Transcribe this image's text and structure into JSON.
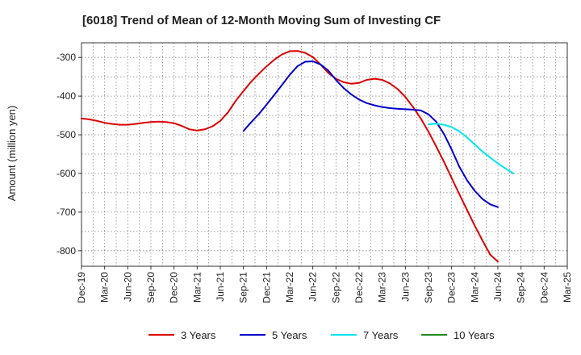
{
  "chart_data": {
    "type": "line",
    "title": "[6018]  Trend of Mean of 12-Month Moving Sum of Investing CF",
    "xlabel": "",
    "ylabel": "Amount (million yen)",
    "ylim": [
      -840,
      -262
    ],
    "yticks": [
      -300,
      -400,
      -500,
      -600,
      -700,
      -800
    ],
    "xticks": [
      "Dec-19",
      "Mar-20",
      "Jun-20",
      "Sep-20",
      "Dec-20",
      "Mar-21",
      "Jun-21",
      "Sep-21",
      "Dec-21",
      "Mar-22",
      "Jun-22",
      "Sep-22",
      "Dec-22",
      "Mar-23",
      "Jun-23",
      "Sep-23",
      "Dec-23",
      "Mar-24",
      "Jun-24",
      "Sep-24",
      "Dec-24",
      "Mar-25"
    ],
    "x_unit": "quarter index from Dec-19 (0) to Mar-25 (21)",
    "grid": true,
    "legend": "bottom",
    "series": [
      {
        "name": "3 Years",
        "color": "#dd0000",
        "x": [
          0,
          0.33,
          0.67,
          1,
          1.33,
          1.67,
          2,
          2.33,
          2.67,
          3,
          3.33,
          3.67,
          4,
          4.33,
          4.67,
          5,
          5.33,
          5.67,
          6,
          6.33,
          6.67,
          7,
          7.33,
          7.67,
          8,
          8.33,
          8.67,
          9,
          9.33,
          9.67,
          10,
          10.33,
          10.67,
          11,
          11.33,
          11.67,
          12,
          12.33,
          12.67,
          13,
          13.33,
          13.67,
          14,
          14.33,
          14.67,
          15,
          15.33,
          15.67,
          16,
          16.33,
          16.67,
          17,
          17.33,
          17.67,
          18,
          18.33,
          18.67,
          19
        ],
        "values": [
          -458,
          -460,
          -464,
          -469,
          -472,
          -474,
          -474,
          -472,
          -469,
          -467,
          -466,
          -467,
          -470,
          -477,
          -486,
          -489,
          -486,
          -478,
          -464,
          -442,
          -412,
          -387,
          -363,
          -342,
          -323,
          -306,
          -292,
          -284,
          -283,
          -288,
          -299,
          -318,
          -340,
          -355,
          -364,
          -368,
          -366,
          -358,
          -355,
          -358,
          -367,
          -382,
          -402,
          -428,
          -458,
          -492,
          -530,
          -570,
          -612,
          -653,
          -695,
          -735,
          -773,
          -810,
          -828,
          null,
          null,
          null
        ]
      },
      {
        "name": "5 Years",
        "color": "#0000cc",
        "x": [
          7,
          7.33,
          7.67,
          8,
          8.33,
          8.67,
          9,
          9.33,
          9.67,
          10,
          10.33,
          10.67,
          11,
          11.33,
          11.67,
          12,
          12.33,
          12.67,
          13,
          13.33,
          13.67,
          14,
          14.33,
          14.67,
          15,
          15.33,
          15.67,
          16,
          16.33,
          16.67,
          17,
          17.33,
          17.67,
          18,
          18.33,
          18.67,
          19
        ],
        "values": [
          -490,
          -468,
          -446,
          -422,
          -397,
          -371,
          -345,
          -323,
          -311,
          -310,
          -318,
          -334,
          -358,
          -379,
          -396,
          -409,
          -418,
          -424,
          -428,
          -431,
          -433,
          -434,
          -435,
          -437,
          -447,
          -466,
          -498,
          -538,
          -582,
          -618,
          -645,
          -666,
          -680,
          -687,
          null,
          null,
          null
        ]
      },
      {
        "name": "7 Years",
        "color": "#00e5ee",
        "x": [
          15,
          15.33,
          15.67,
          16,
          16.33,
          16.67,
          17,
          17.33,
          17.67,
          18,
          18.33,
          18.67,
          19
        ],
        "values": [
          -473,
          -471,
          -474,
          -480,
          -491,
          -507,
          -525,
          -543,
          -559,
          -574,
          -587,
          -600,
          null
        ]
      },
      {
        "name": "10 Years",
        "color": "#228b22",
        "x": [],
        "values": []
      }
    ]
  }
}
